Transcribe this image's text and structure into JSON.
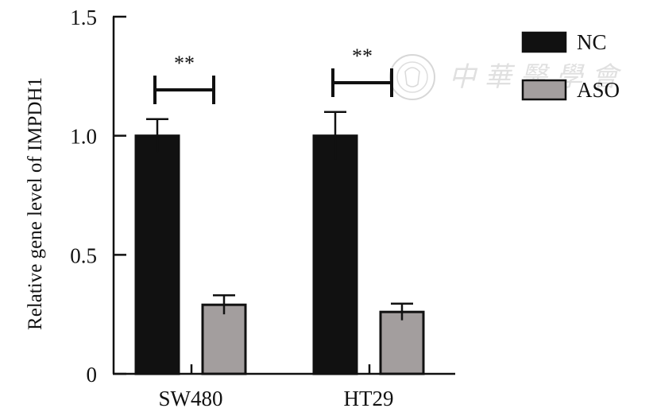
{
  "chart_data": {
    "type": "bar",
    "title": "",
    "xlabel": "",
    "ylabel": "Relative gene level of IMPDH1",
    "ylim": [
      0,
      1.5
    ],
    "yticks": [
      {
        "value": 0,
        "label": "0"
      },
      {
        "value": 0.5,
        "label": "0.5"
      },
      {
        "value": 1.0,
        "label": "1.0"
      },
      {
        "value": 1.5,
        "label": "1.5"
      }
    ],
    "categories": [
      "SW480",
      "HT29"
    ],
    "series": [
      {
        "name": "NC",
        "color": "#111111",
        "values": [
          1.0,
          1.0
        ],
        "errors": [
          0.07,
          0.1
        ]
      },
      {
        "name": "ASO",
        "color": "#a39e9e",
        "values": [
          0.29,
          0.26
        ],
        "errors": [
          0.04,
          0.035
        ]
      }
    ],
    "annotations": [
      {
        "category": "SW480",
        "text": "**"
      },
      {
        "category": "HT29",
        "text": "**"
      }
    ],
    "legend": {
      "position": "top-right"
    },
    "grid": false
  },
  "watermark": {
    "text": "中華醫學會",
    "seal": "seal-emblem"
  }
}
